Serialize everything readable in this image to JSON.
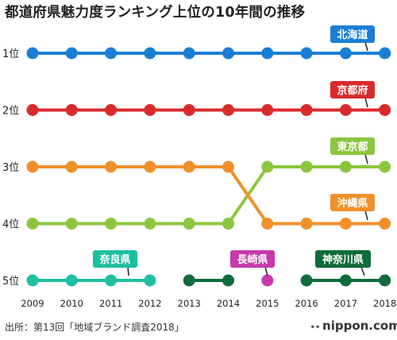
{
  "title": "都道府県魅力度ランキング上位の10年間の推移",
  "source": "出所：第13回「地域ブランド調査2018」",
  "brand": "nippon.com",
  "chart_data": {
    "type": "line",
    "title": "都道府県魅力度ランキング上位の10年間の推移",
    "xlabel": "",
    "ylabel": "",
    "x": [
      "2009",
      "2010",
      "2011",
      "2012",
      "2013",
      "2014",
      "2015",
      "2016",
      "2017",
      "2018"
    ],
    "y_tick_labels": [
      "1位",
      "2位",
      "3位",
      "4位",
      "5位"
    ],
    "ylim": [
      1,
      5
    ],
    "y_inverted": true,
    "grid": false,
    "series": [
      {
        "name": "北海道",
        "color": "#1a7fd4",
        "values": [
          1,
          1,
          1,
          1,
          1,
          1,
          1,
          1,
          1,
          1
        ]
      },
      {
        "name": "京都府",
        "color": "#d92b2b",
        "values": [
          2,
          2,
          2,
          2,
          2,
          2,
          2,
          2,
          2,
          2
        ]
      },
      {
        "name": "東京都",
        "color": "#8cc63f",
        "values": [
          4,
          4,
          4,
          4,
          4,
          4,
          3,
          3,
          3,
          3
        ]
      },
      {
        "name": "沖縄県",
        "color": "#f0902b",
        "values": [
          3,
          3,
          3,
          3,
          3,
          3,
          4,
          4,
          4,
          4
        ]
      },
      {
        "name": "奈良県",
        "color": "#1fbfa0",
        "values": [
          5,
          5,
          5,
          5,
          null,
          null,
          null,
          null,
          null,
          null
        ]
      },
      {
        "name": "長崎県",
        "color": "#c63aaa",
        "values": [
          null,
          null,
          null,
          null,
          null,
          null,
          5,
          null,
          null,
          null
        ]
      },
      {
        "name": "神奈川県",
        "color": "#0f6b3a",
        "values": [
          null,
          null,
          null,
          null,
          5,
          5,
          null,
          5,
          5,
          5
        ]
      }
    ]
  }
}
